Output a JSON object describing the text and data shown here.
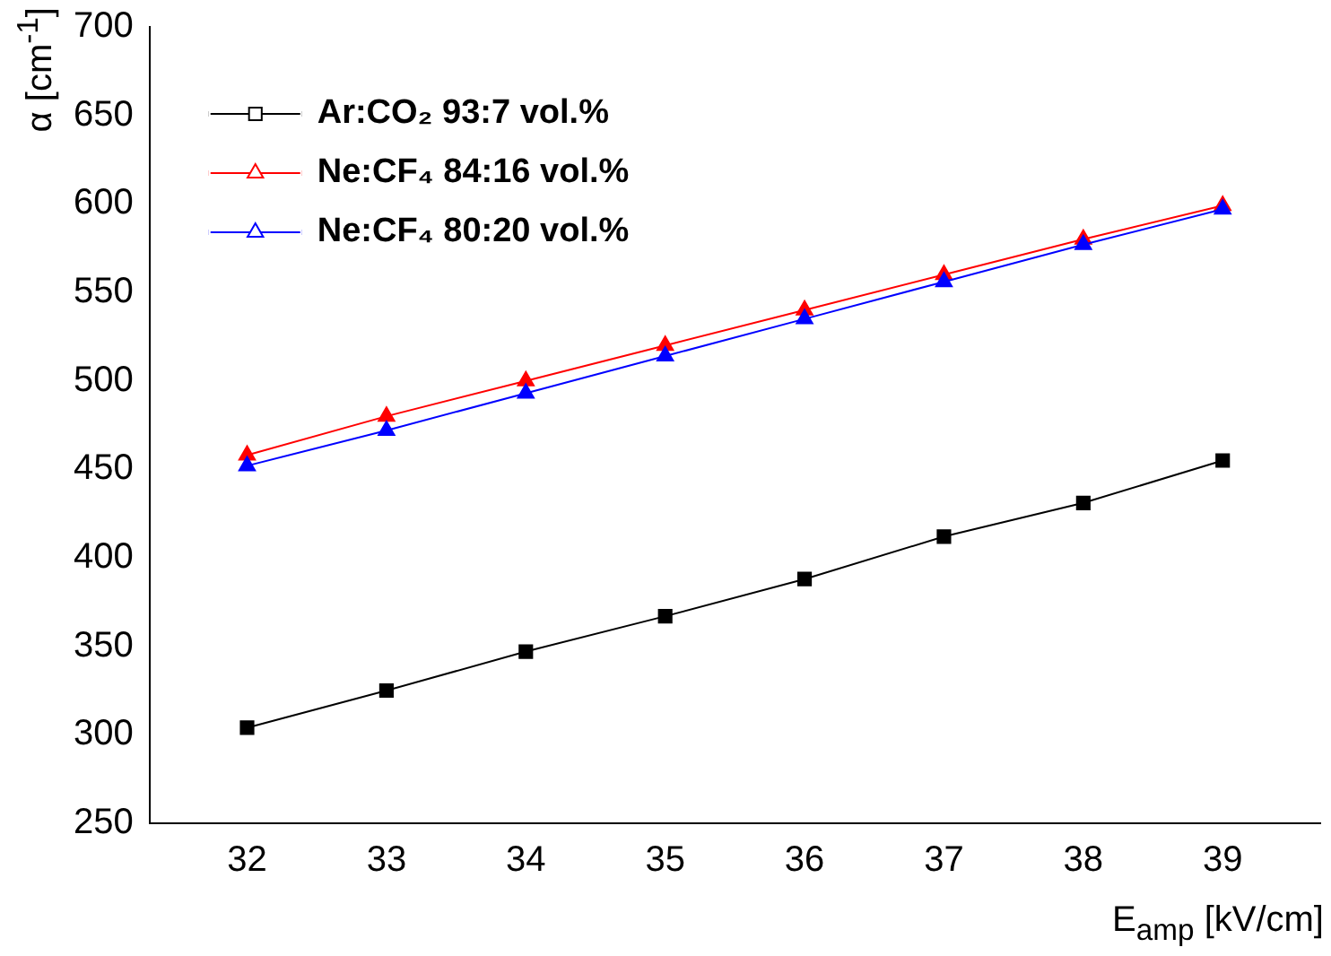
{
  "chart_data": {
    "type": "line",
    "xlabel": "E$_{amp}$ [kV/cm]",
    "ylabel": "α [cm$^{-1}$]",
    "x": [
      32,
      33,
      34,
      35,
      36,
      37,
      38,
      39
    ],
    "series": [
      {
        "name": "Ar:CO₂ 93:7 vol.%",
        "color": "#000000",
        "marker": "square",
        "values": [
          304,
          325,
          347,
          367,
          388,
          412,
          431,
          455
        ]
      },
      {
        "name": "Ne:CF₄ 84:16 vol.%",
        "color": "#ff0000",
        "marker": "triangle",
        "values": [
          458,
          480,
          500,
          520,
          540,
          560,
          580,
          599
        ]
      },
      {
        "name": "Ne:CF₄ 80:20 vol.%",
        "color": "#0000ff",
        "marker": "triangle",
        "values": [
          452,
          472,
          493,
          514,
          535,
          556,
          577,
          597
        ]
      }
    ],
    "xlim": [
      31.3,
      39.7
    ],
    "xticks": [
      32,
      33,
      34,
      35,
      36,
      37,
      38,
      39
    ],
    "ylim": [
      250,
      700
    ],
    "yticks": [
      250,
      300,
      350,
      400,
      450,
      500,
      550,
      600,
      650,
      700
    ],
    "grid": false,
    "legend": "top left",
    "line_style": "solid"
  }
}
